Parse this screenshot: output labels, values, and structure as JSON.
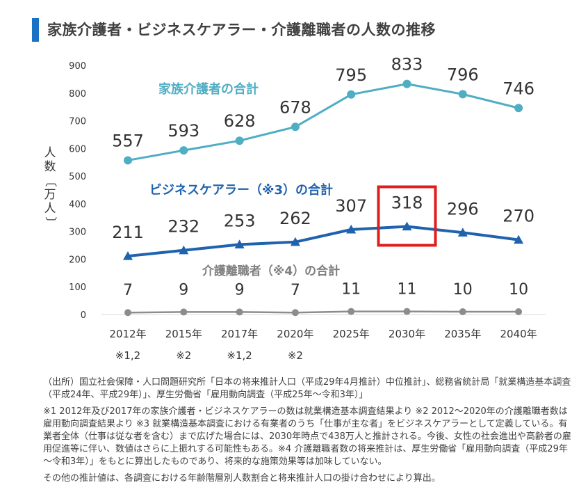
{
  "title": "家族介護者・ビジネスケアラー・介護離職者の人数の推移",
  "colors": {
    "title_accent": "#1a72c4",
    "family": "#4fadc4",
    "business": "#1f62ae",
    "leave": "#8c8c8c",
    "leave_label": "#7f7f7f",
    "highlight_box": "#e01e1e",
    "axis_text": "#333333"
  },
  "chart_data": {
    "type": "line",
    "categories": [
      "2012年",
      "2015年",
      "2017年",
      "2020年",
      "2025年",
      "2030年",
      "2035年",
      "2040年"
    ],
    "category_notes": [
      "※1,2",
      "※2",
      "※1,2",
      "※2",
      "",
      "",
      "",
      ""
    ],
    "ylabel": "人数〔万人〕",
    "ylim": [
      0,
      900
    ],
    "yticks": [
      0,
      100,
      200,
      300,
      400,
      500,
      600,
      700,
      800,
      900
    ],
    "grid": false,
    "legend": "inline labels",
    "series": [
      {
        "name": "家族介護者の合計",
        "key": "family",
        "marker": "circle",
        "values": [
          557,
          593,
          628,
          678,
          795,
          833,
          796,
          746
        ]
      },
      {
        "name": "ビジネスケアラー（※3）の合計",
        "key": "business",
        "marker": "triangle",
        "values": [
          211,
          232,
          253,
          262,
          307,
          318,
          296,
          270
        ]
      },
      {
        "name": "介護離職者（※4）の合計",
        "key": "leave",
        "marker": "circle",
        "values": [
          7,
          9,
          9,
          7,
          11,
          11,
          10,
          10
        ]
      }
    ],
    "highlight": {
      "series": "business",
      "category_index": 5
    }
  },
  "notes": {
    "source": "（出所）国立社会保障・人口問題研究所「日本の将来推計人口（平成29年4月推計）中位推計」、総務省統計局「就業構造基本調査（平成24年、平成29年）」、厚生労働省「雇用動向調査（平成25年～令和3年）」",
    "footnote": "※1 2012年及び2017年の家族介護者・ビジネスケアラーの数は就業構造基本調査結果より ※2 2012～2020年の介護離職者数は雇用動向調査結果より ※3 就業構造基本調査における有業者のうち「仕事が主な者」をビジネスケアラーとして定義している。有業者全体（仕事は従な者を含む）まで広げた場合には、2030年時点で438万人と推計される。今後、女性の社会進出や高齢者の雇用促進等に伴い、数値はさらに上振れする可能性もある。※4 介護離職者数の将来推計は、厚生労働省「雇用動向調査（平成29年～令和3年）」をもとに算出したものであり、将来的な施策効果等は加味していない。",
    "other": "その他の推計値は、各調査における年齢階層別人数割合と将来推計人口の掛け合わせにより算出。"
  }
}
